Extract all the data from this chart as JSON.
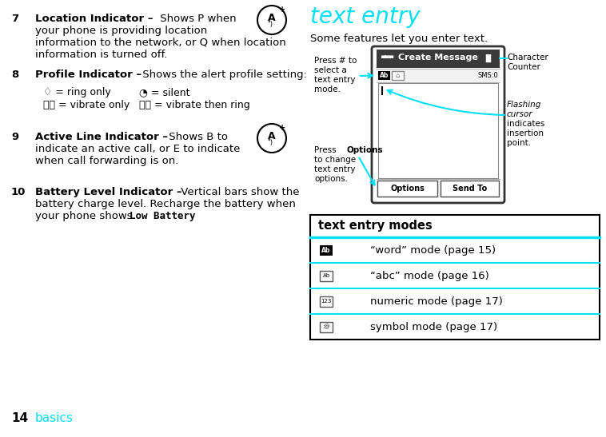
{
  "bg_color": "#ffffff",
  "cyan_color": "#00e0f0",
  "title_text": "text entry",
  "title_color": "#00e0f0",
  "title_fontsize": 20,
  "page_number": "14",
  "page_label": "basics",
  "page_label_color": "#00e0f0",
  "right_top_text": "Some features let you enter text.",
  "table_header": "text entry modes",
  "table_rows": [
    {
      "icon_text": "Ab",
      "icon_bg": "#000000",
      "icon_fg": "#ffffff",
      "description": "“word” mode (page 15)"
    },
    {
      "icon_text": "Ab",
      "icon_bg": "#ffffff",
      "icon_fg": "#000000",
      "description": "“abc” mode (page 16)"
    },
    {
      "icon_text": "123",
      "icon_bg": "#ffffff",
      "icon_fg": "#000000",
      "description": "numeric mode (page 17)"
    },
    {
      "icon_text": ":@",
      "icon_bg": "#ffffff",
      "icon_fg": "#000000",
      "description": "symbol mode (page 17)"
    }
  ],
  "item7_num": "7",
  "item7_bold": "Location Indicator –",
  "item7_lines": [
    "Shows P when",
    "your phone is providing location",
    "information to the network, or Q when location",
    "information is turned off."
  ],
  "item8_num": "8",
  "item8_bold": "Profile Indicator –",
  "item8_line": "Shows the alert profile setting:",
  "item8_sub": [
    [
      "🔔 = ring only",
      "🔇 = silent"
    ],
    [
      "📳 = vibrate only",
      "📳 = vibrate then ring"
    ]
  ],
  "item9_num": "9",
  "item9_bold": "Active Line Indicator –",
  "item9_lines": [
    "Shows B to",
    "indicate an active call, or E to indicate",
    "when call forwarding is on."
  ],
  "item10_num": "10",
  "item10_bold": "Battery Level Indicator –",
  "item10_lines": [
    "Vertical bars show the",
    "battery charge level. Recharge the battery when",
    "your phone shows "
  ],
  "item10_mono": "Low Battery",
  "phone_label1a": "Press ",
  "phone_label1b": "to",
  "phone_label1c": "select a",
  "phone_label1d": "text entry",
  "phone_label1e": "mode.",
  "phone_label2a": "Press ",
  "phone_label2b": "Options",
  "phone_label2c": "to change",
  "phone_label2d": "text entry",
  "phone_label2e": "options.",
  "ann_r1": "Character",
  "ann_r2": "Counter",
  "ann_r3": "Flashing",
  "ann_r4": "cursor",
  "ann_r5": "indicates",
  "ann_r6": "insertion",
  "ann_r7": "point."
}
